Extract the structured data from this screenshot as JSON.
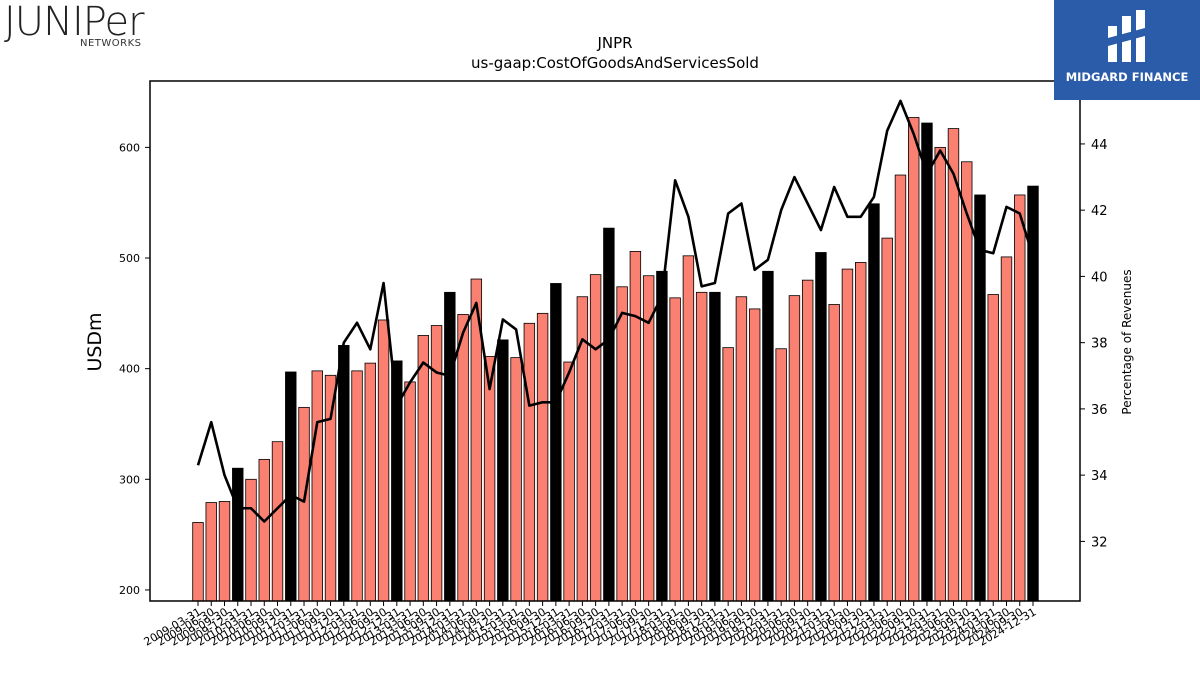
{
  "logos": {
    "left_word": "JUNIPer",
    "left_sub": "NETWORKS",
    "right_text": "MIDGARD FINANCE"
  },
  "chart_data": {
    "type": "bar",
    "title": "JNPR",
    "subtitle": "us-gaap:CostOfGoodsAndServicesSold",
    "ylabel": "USDm",
    "y2label": "Percentage of Revenues",
    "ylim": [
      190,
      660
    ],
    "y2lim": [
      30.2,
      45.9
    ],
    "yticks": [
      200,
      300,
      400,
      500,
      600
    ],
    "y2ticks": [
      32,
      34,
      36,
      38,
      40,
      42,
      44
    ],
    "colors": {
      "quarter": "#fa8072",
      "year_end": "#000000",
      "line": "#000000"
    },
    "categories": [
      "2009-03-31",
      "2009-06-30",
      "2009-09-30",
      "2009-12-31",
      "2010-03-31",
      "2010-06-30",
      "2010-09-30",
      "2010-12-31",
      "2011-03-31",
      "2011-06-30",
      "2011-09-30",
      "2011-12-31",
      "2012-03-31",
      "2012-06-30",
      "2012-09-30",
      "2012-12-31",
      "2013-03-31",
      "2013-06-30",
      "2013-09-30",
      "2013-12-31",
      "2014-03-31",
      "2014-06-30",
      "2014-09-30",
      "2014-12-31",
      "2015-03-31",
      "2015-06-30",
      "2015-09-30",
      "2015-12-31",
      "2016-03-31",
      "2016-06-30",
      "2016-09-30",
      "2016-12-31",
      "2017-03-31",
      "2017-06-30",
      "2017-09-30",
      "2017-12-31",
      "2018-03-31",
      "2018-06-30",
      "2018-09-30",
      "2018-12-31",
      "2019-03-31",
      "2019-06-30",
      "2019-09-30",
      "2019-12-31",
      "2020-03-31",
      "2020-06-30",
      "2020-09-30",
      "2020-12-31",
      "2021-03-31",
      "2021-06-30",
      "2021-09-30",
      "2021-12-31",
      "2022-03-31",
      "2022-06-30",
      "2022-09-30",
      "2022-12-31",
      "2023-03-31",
      "2023-06-30",
      "2023-09-30",
      "2023-12-31",
      "2024-03-31",
      "2024-06-30",
      "2024-09-30",
      "2024-12-31"
    ],
    "series": [
      {
        "values": [
          261,
          279,
          280,
          310,
          300,
          318,
          334,
          397,
          365,
          398,
          394,
          421,
          398,
          405,
          444,
          407,
          388,
          430,
          439,
          469,
          449,
          481,
          411,
          426,
          410,
          441,
          450,
          477,
          406,
          465,
          485,
          527,
          474,
          506,
          484,
          488,
          464,
          502,
          469,
          469,
          419,
          465,
          454,
          488,
          418,
          466,
          480,
          505,
          458,
          490,
          496,
          549,
          518,
          575,
          627,
          622,
          600,
          617,
          587,
          557,
          467,
          501,
          557,
          565
        ]
      },
      {
        "values": [
          34.3,
          35.6,
          34.0,
          33.0,
          33.0,
          32.6,
          33.0,
          33.4,
          33.2,
          35.6,
          35.7,
          38.0,
          38.6,
          37.8,
          39.8,
          36.1,
          36.8,
          37.4,
          37.1,
          37.0,
          38.3,
          39.2,
          36.6,
          38.7,
          38.4,
          36.1,
          36.2,
          36.2,
          37.1,
          38.1,
          37.8,
          38.1,
          38.9,
          38.8,
          38.6,
          39.4,
          42.9,
          41.8,
          39.7,
          39.8,
          41.9,
          42.2,
          40.2,
          40.5,
          42.0,
          43.0,
          42.2,
          41.4,
          42.7,
          41.8,
          41.8,
          42.4,
          44.4,
          45.3,
          44.3,
          43.1,
          43.8,
          43.1,
          41.9,
          40.8,
          40.7,
          42.1,
          41.9,
          40.6
        ]
      }
    ]
  }
}
